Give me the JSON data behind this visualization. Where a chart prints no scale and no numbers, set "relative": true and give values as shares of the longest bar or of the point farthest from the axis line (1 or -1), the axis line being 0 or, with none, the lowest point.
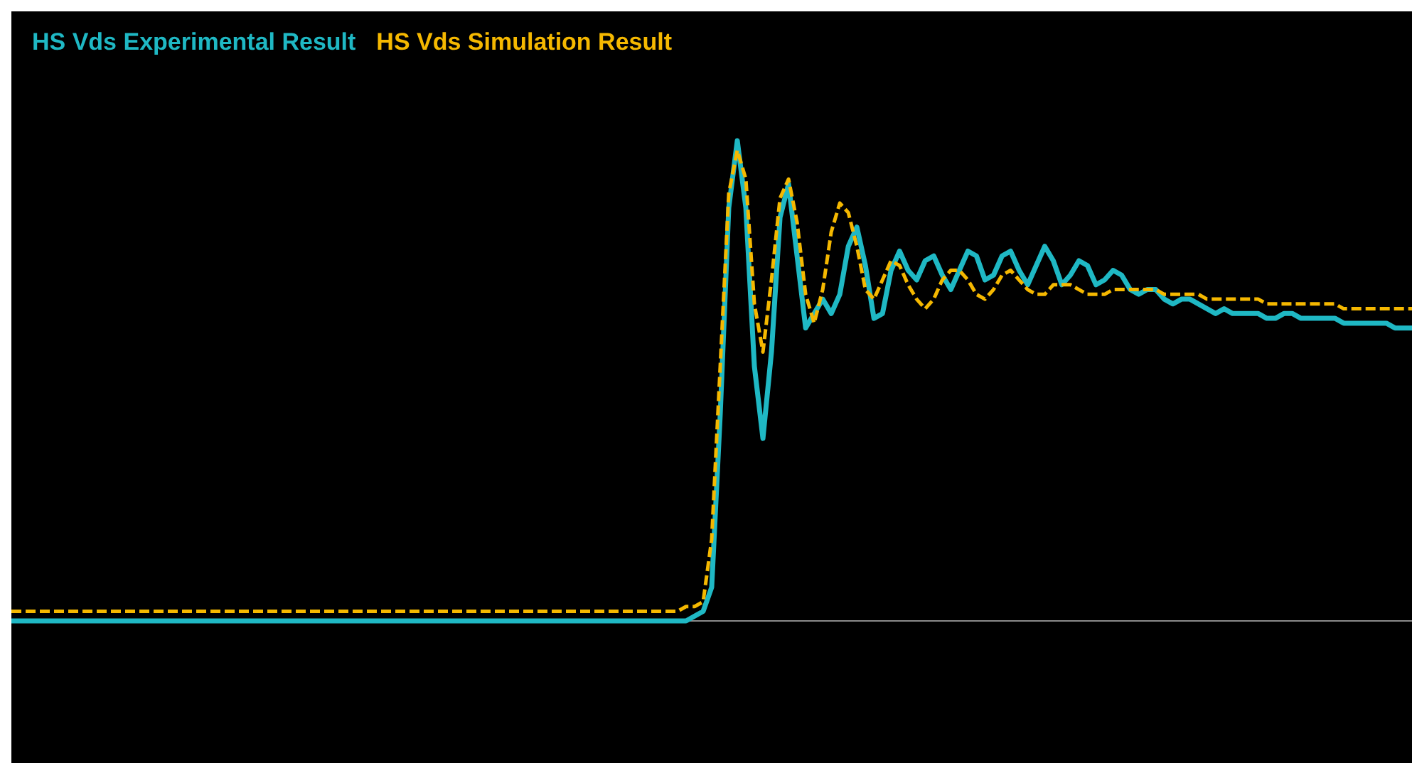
{
  "chart_data": {
    "type": "line",
    "relative": true,
    "legend": "top left",
    "marker": "none",
    "categories": [
      null,
      null,
      null,
      null,
      null,
      null,
      null,
      null,
      null,
      null,
      null,
      null,
      null,
      null,
      null,
      null,
      null,
      null,
      null,
      null,
      null,
      null,
      null,
      null,
      null,
      null,
      null,
      null,
      null,
      null,
      null,
      null,
      null,
      null,
      null,
      null,
      null,
      null,
      null,
      null,
      null,
      null,
      null,
      null,
      null,
      null,
      null,
      null,
      null,
      null,
      null,
      null,
      null,
      null,
      null,
      null,
      null,
      null,
      null,
      null,
      null,
      null,
      null,
      null,
      null,
      null,
      null,
      null,
      null,
      null,
      null,
      null,
      null,
      null,
      null,
      null,
      null,
      null,
      null,
      null,
      null,
      null,
      null,
      null,
      null,
      null,
      null,
      null,
      null,
      null,
      null,
      null,
      null,
      null,
      null,
      null,
      null,
      null,
      null,
      null,
      null,
      null,
      null,
      null,
      null,
      null,
      null,
      null,
      null,
      null,
      null,
      null,
      null,
      null,
      null,
      null,
      null,
      null,
      null,
      null,
      null,
      null,
      null,
      null,
      null,
      null,
      null,
      null,
      null,
      null,
      null,
      null,
      null,
      null,
      null,
      null,
      null,
      null,
      null,
      null,
      null,
      null,
      null,
      null,
      null,
      null,
      null,
      null,
      null,
      null,
      null,
      null,
      null,
      null,
      null,
      null,
      null,
      null,
      null,
      null,
      null,
      null,
      null,
      null,
      null
    ],
    "series": [
      {
        "name": "HS Vds Experimental Result",
        "color": "#1fb8c4",
        "line_style": "solid",
        "values": [
          0,
          0,
          0,
          0,
          0,
          0,
          0,
          0,
          0,
          0,
          0,
          0,
          0,
          0,
          0,
          0,
          0,
          0,
          0,
          0,
          0,
          0,
          0,
          0,
          0,
          0,
          0,
          0,
          0,
          0,
          0,
          0,
          0,
          0,
          0,
          0,
          0,
          0,
          0,
          0,
          0,
          0,
          0,
          0,
          0,
          0,
          0,
          0,
          0,
          0,
          0,
          0,
          0,
          0,
          0,
          0,
          0,
          0,
          0,
          0,
          0,
          0,
          0,
          0,
          0,
          0,
          0,
          0,
          0,
          0,
          0,
          0,
          0,
          0,
          0,
          0,
          0,
          0,
          0,
          0,
          0.01,
          0.02,
          0.07,
          0.43,
          0.86,
          1,
          0.86,
          0.53,
          0.38,
          0.56,
          0.84,
          0.91,
          0.76,
          0.61,
          0.64,
          0.67,
          0.64,
          0.68,
          0.78,
          0.82,
          0.74,
          0.63,
          0.64,
          0.73,
          0.77,
          0.73,
          0.71,
          0.75,
          0.76,
          0.72,
          0.69,
          0.73,
          0.77,
          0.76,
          0.71,
          0.72,
          0.76,
          0.77,
          0.73,
          0.7,
          0.74,
          0.78,
          0.75,
          0.7,
          0.72,
          0.75,
          0.74,
          0.7,
          0.71,
          0.73,
          0.72,
          0.69,
          0.68,
          0.69,
          0.69,
          0.67,
          0.66,
          0.67,
          0.67,
          0.66,
          0.65,
          0.64,
          0.65,
          0.64,
          0.64,
          0.64,
          0.64,
          0.63,
          0.63,
          0.64,
          0.64,
          0.63,
          0.63,
          0.63,
          0.63,
          0.63,
          0.62,
          0.62,
          0.62,
          0.62,
          0.62,
          0.62,
          0.61,
          0.61,
          0.61
        ]
      },
      {
        "name": "HS Vds Simulation Result",
        "color": "#f5b800",
        "line_style": "dashed",
        "values": [
          0.02,
          0.02,
          0.02,
          0.02,
          0.02,
          0.02,
          0.02,
          0.02,
          0.02,
          0.02,
          0.02,
          0.02,
          0.02,
          0.02,
          0.02,
          0.02,
          0.02,
          0.02,
          0.02,
          0.02,
          0.02,
          0.02,
          0.02,
          0.02,
          0.02,
          0.02,
          0.02,
          0.02,
          0.02,
          0.02,
          0.02,
          0.02,
          0.02,
          0.02,
          0.02,
          0.02,
          0.02,
          0.02,
          0.02,
          0.02,
          0.02,
          0.02,
          0.02,
          0.02,
          0.02,
          0.02,
          0.02,
          0.02,
          0.02,
          0.02,
          0.02,
          0.02,
          0.02,
          0.02,
          0.02,
          0.02,
          0.02,
          0.02,
          0.02,
          0.02,
          0.02,
          0.02,
          0.02,
          0.02,
          0.02,
          0.02,
          0.02,
          0.02,
          0.02,
          0.02,
          0.02,
          0.02,
          0.02,
          0.02,
          0.02,
          0.02,
          0.02,
          0.02,
          0.02,
          0.03,
          0.03,
          0.04,
          0.17,
          0.53,
          0.89,
          0.98,
          0.92,
          0.66,
          0.56,
          0.71,
          0.88,
          0.92,
          0.83,
          0.68,
          0.62,
          0.69,
          0.81,
          0.87,
          0.85,
          0.78,
          0.69,
          0.67,
          0.71,
          0.75,
          0.74,
          0.7,
          0.67,
          0.65,
          0.67,
          0.71,
          0.73,
          0.73,
          0.71,
          0.68,
          0.67,
          0.69,
          0.72,
          0.73,
          0.71,
          0.69,
          0.68,
          0.68,
          0.7,
          0.7,
          0.7,
          0.69,
          0.68,
          0.68,
          0.68,
          0.69,
          0.69,
          0.69,
          0.69,
          0.69,
          0.69,
          0.68,
          0.68,
          0.68,
          0.68,
          0.68,
          0.67,
          0.67,
          0.67,
          0.67,
          0.67,
          0.67,
          0.67,
          0.66,
          0.66,
          0.66,
          0.66,
          0.66,
          0.66,
          0.66,
          0.66,
          0.66,
          0.65,
          0.65,
          0.65,
          0.65,
          0.65,
          0.65,
          0.65,
          0.65,
          0.65
        ]
      }
    ]
  }
}
